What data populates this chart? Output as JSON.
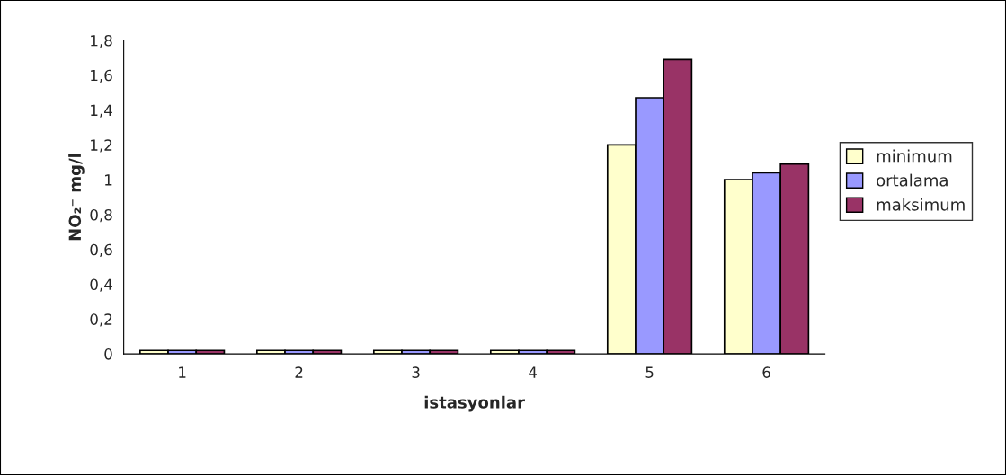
{
  "chart_data": {
    "type": "bar",
    "xlabel": "istasyonlar",
    "ylabel": "NO₂⁻ mg/l",
    "categories": [
      "1",
      "2",
      "3",
      "4",
      "5",
      "6"
    ],
    "series": [
      {
        "name": "minimum",
        "color": "#ffffcc",
        "values": [
          0.02,
          0.02,
          0.02,
          0.02,
          1.2,
          1.0
        ]
      },
      {
        "name": "ortalama",
        "color": "#9999ff",
        "values": [
          0.02,
          0.02,
          0.02,
          0.02,
          1.47,
          1.04
        ]
      },
      {
        "name": "maksimum",
        "color": "#993366",
        "values": [
          0.02,
          0.02,
          0.02,
          0.02,
          1.69,
          1.09
        ]
      }
    ],
    "ylim": [
      0,
      1.8
    ],
    "yticks": [
      0,
      {
        "value": 0.2,
        "label": "0,2"
      },
      {
        "value": 0.4,
        "label": "0,4"
      },
      {
        "value": 0.6,
        "label": "0,6"
      },
      {
        "value": 0.8,
        "label": "0,8"
      },
      1,
      {
        "value": 1.2,
        "label": "1,2"
      },
      {
        "value": 1.4,
        "label": "1,4"
      },
      {
        "value": 1.6,
        "label": "1,6"
      },
      {
        "value": 1.8,
        "label": "1,8"
      }
    ],
    "grid": false,
    "legend": "right"
  }
}
